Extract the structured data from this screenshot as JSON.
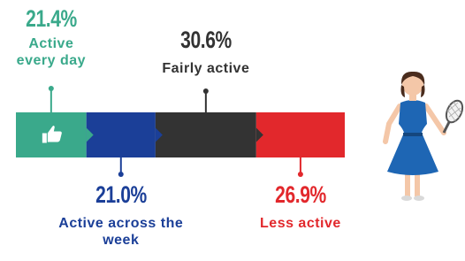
{
  "chart_data": {
    "type": "stacked-bar",
    "categories": [
      "Active every day",
      "Active across the week",
      "Fairly active",
      "Less active"
    ],
    "values": [
      21.4,
      21.0,
      30.6,
      26.9
    ],
    "value_labels": [
      "21.4%",
      "21.0%",
      "30.6%",
      "26.9%"
    ],
    "colors": [
      "#3aa98b",
      "#1b3f98",
      "#333333",
      "#e2282c"
    ]
  }
}
